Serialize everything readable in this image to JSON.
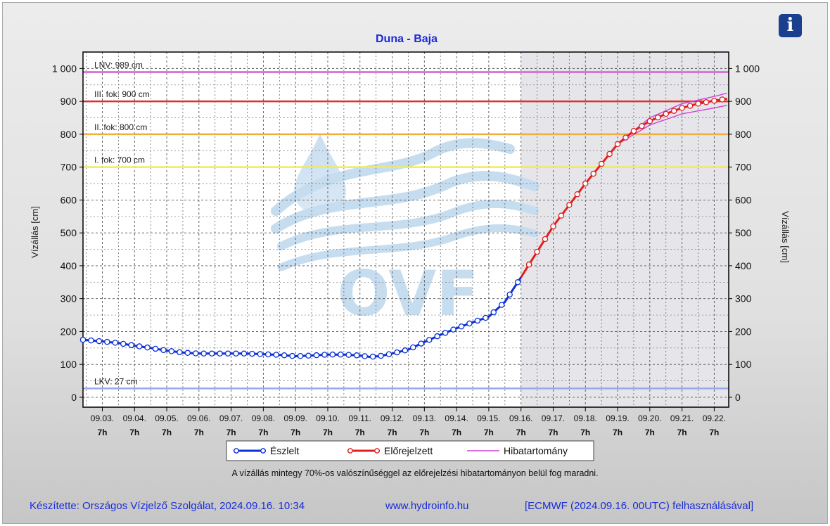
{
  "chart_data": {
    "type": "line",
    "title": "Duna - Baja",
    "ylabel": "Vízállás [cm]",
    "ylabel_right": "Vízállás [cm]",
    "ylim": [
      -30,
      1050
    ],
    "yticks": [
      0,
      100,
      200,
      300,
      400,
      500,
      600,
      700,
      800,
      900,
      1000
    ],
    "ytick_labels": [
      "0",
      "100",
      "200",
      "300",
      "400",
      "500",
      "600",
      "700",
      "800",
      "900",
      "1 000"
    ],
    "xlim": [
      -0.6,
      19.45
    ],
    "xticks": [
      {
        "x": 0,
        "date": "09.03.",
        "hour": "7h"
      },
      {
        "x": 1,
        "date": "09.04.",
        "hour": "7h"
      },
      {
        "x": 2,
        "date": "09.05.",
        "hour": "7h"
      },
      {
        "x": 3,
        "date": "09.06.",
        "hour": "7h"
      },
      {
        "x": 4,
        "date": "09.07.",
        "hour": "7h"
      },
      {
        "x": 5,
        "date": "09.08.",
        "hour": "7h"
      },
      {
        "x": 6,
        "date": "09.09.",
        "hour": "7h"
      },
      {
        "x": 7,
        "date": "09.10.",
        "hour": "7h"
      },
      {
        "x": 8,
        "date": "09.11.",
        "hour": "7h"
      },
      {
        "x": 9,
        "date": "09.12.",
        "hour": "7h"
      },
      {
        "x": 10,
        "date": "09.13.",
        "hour": "7h"
      },
      {
        "x": 11,
        "date": "09.14.",
        "hour": "7h"
      },
      {
        "x": 12,
        "date": "09.15.",
        "hour": "7h"
      },
      {
        "x": 13,
        "date": "09.16.",
        "hour": "7h"
      },
      {
        "x": 14,
        "date": "09.17.",
        "hour": "7h"
      },
      {
        "x": 15,
        "date": "09.18.",
        "hour": "7h"
      },
      {
        "x": 16,
        "date": "09.19.",
        "hour": "7h"
      },
      {
        "x": 17,
        "date": "09.20.",
        "hour": "7h"
      },
      {
        "x": 18,
        "date": "09.21.",
        "hour": "7h"
      },
      {
        "x": 19,
        "date": "09.22.",
        "hour": "7h"
      }
    ],
    "forecast_start_x": 13,
    "grid": true,
    "legend_position": "bottom",
    "thresholds": [
      {
        "label": "LNV: 989 cm",
        "value": 989,
        "color": "#d45fd4"
      },
      {
        "label": "III. fok: 900 cm",
        "value": 900,
        "color": "#dd3030"
      },
      {
        "label": "II. fok: 800 cm",
        "value": 800,
        "color": "#f5ad3c"
      },
      {
        "label": "I. fok: 700 cm",
        "value": 700,
        "color": "#f2ec50"
      },
      {
        "label": "LKV: 27 cm",
        "value": 27,
        "color": "#9aa8f0"
      }
    ],
    "anchors": {
      "observed": [
        [
          -0.6,
          175
        ],
        [
          0,
          170
        ],
        [
          0.5,
          165
        ],
        [
          1,
          157
        ],
        [
          1.5,
          150
        ],
        [
          2,
          142
        ],
        [
          2.5,
          136
        ],
        [
          3,
          133
        ],
        [
          3.5,
          133
        ],
        [
          4,
          133
        ],
        [
          4.5,
          133
        ],
        [
          5,
          131
        ],
        [
          5.5,
          129
        ],
        [
          6,
          125
        ],
        [
          6.5,
          127
        ],
        [
          7,
          130
        ],
        [
          7.5,
          130
        ],
        [
          8,
          127
        ],
        [
          8.3,
          123
        ],
        [
          8.6,
          125
        ],
        [
          9,
          133
        ],
        [
          9.5,
          145
        ],
        [
          10,
          168
        ],
        [
          10.5,
          190
        ],
        [
          11,
          210
        ],
        [
          11.5,
          228
        ],
        [
          12,
          245
        ],
        [
          12.5,
          290
        ],
        [
          13,
          365
        ]
      ],
      "forecast": [
        [
          13,
          365
        ],
        [
          14,
          520
        ],
        [
          15,
          650
        ],
        [
          16,
          770
        ],
        [
          16.5,
          810
        ],
        [
          17,
          840
        ],
        [
          17.5,
          862
        ],
        [
          18,
          880
        ],
        [
          18.5,
          893
        ],
        [
          19,
          902
        ],
        [
          19.4,
          908
        ]
      ],
      "error_upper": [
        [
          16,
          770
        ],
        [
          17,
          850
        ],
        [
          18,
          893
        ],
        [
          19,
          915
        ],
        [
          19.4,
          925
        ]
      ],
      "error_lower": [
        [
          16,
          770
        ],
        [
          17,
          828
        ],
        [
          18,
          862
        ],
        [
          19,
          880
        ],
        [
          19.4,
          888
        ]
      ]
    },
    "series": [
      {
        "name": "Észlelt",
        "color": "#0a2fd6",
        "key": "observed"
      },
      {
        "name": "Előrejelzett",
        "color": "#e02020",
        "key": "forecast"
      },
      {
        "name": "Hibatartomány",
        "color": "#d040d8",
        "key": "error"
      }
    ]
  },
  "info_button": {
    "icon": "info-icon",
    "glyph": "i"
  },
  "note": "A vízállás mintegy 70%-os valószínűséggel az előrejelzési hibatartományon belül fog maradni.",
  "footer": {
    "author": "Készítette: Országos Vízjelző Szolgálat, 2024.09.16. 10:34",
    "site": "www.hydroinfo.hu",
    "source": "[ECMWF (2024.09.16. 00UTC) felhasználásával]"
  },
  "watermark": "OVF"
}
